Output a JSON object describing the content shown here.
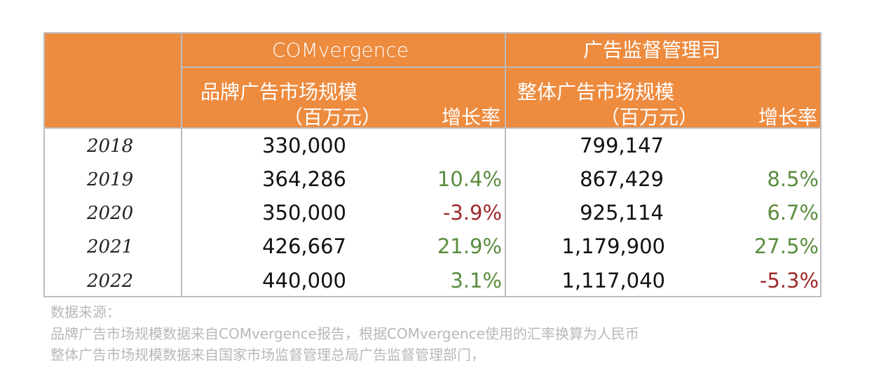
{
  "header": {
    "group_comvergence": "COMvergence",
    "group_regulator": "广告监督管理司",
    "brand_metric": "品牌广告市场规模",
    "brand_unit": "（百万元）",
    "brand_growth": "增长率",
    "total_metric": "整体广告市场规模",
    "total_unit": "（百万元）",
    "total_growth": "增长率"
  },
  "rows": [
    {
      "year": "2018",
      "brand": "330,000",
      "brand_growth": "",
      "brand_growth_sign": "none",
      "total": "799,147",
      "total_growth": "",
      "total_growth_sign": "none"
    },
    {
      "year": "2019",
      "brand": "364,286",
      "brand_growth": "10.4%",
      "brand_growth_sign": "positive",
      "total": "867,429",
      "total_growth": "8.5%",
      "total_growth_sign": "positive"
    },
    {
      "year": "2020",
      "brand": "350,000",
      "brand_growth": "-3.9%",
      "brand_growth_sign": "negative",
      "total": "925,114",
      "total_growth": "6.7%",
      "total_growth_sign": "positive"
    },
    {
      "year": "2021",
      "brand": "426,667",
      "brand_growth": "21.9%",
      "brand_growth_sign": "positive",
      "total": "1,179,900",
      "total_growth": "27.5%",
      "total_growth_sign": "positive"
    },
    {
      "year": "2022",
      "brand": "440,000",
      "brand_growth": "3.1%",
      "brand_growth_sign": "positive",
      "total": "1,117,040",
      "total_growth": "-5.3%",
      "total_growth_sign": "negative"
    }
  ],
  "source": {
    "title": "数据来源：",
    "line1": "品牌广告市场规模数据来自COMvergence报告，根据COMvergence使用的汇率换算为人民币",
    "line2": "整体广告市场规模数据来自国家市场监督管理总局广告监督管理部门，"
  },
  "colors": {
    "header_bg": "#ED8B3F",
    "header_text": "#FFFFFF",
    "grid": "#BDBDBD",
    "positive": "#5B8C3E",
    "negative": "#9E2A2B",
    "source_text": "#B8B8B8"
  }
}
